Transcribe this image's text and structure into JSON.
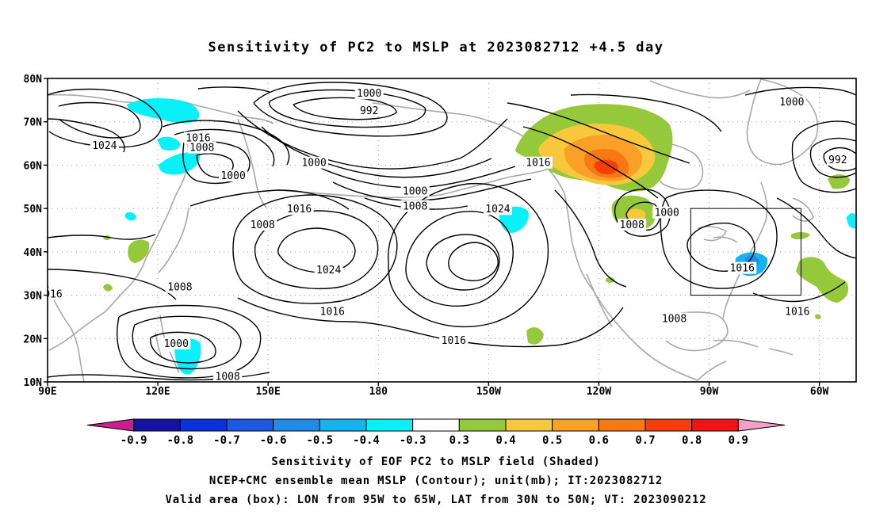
{
  "title": "Sensitivity of PC2 to MSLP at 2023082712 +4.5 day",
  "map": {
    "lat_labels": [
      "80N",
      "70N",
      "60N",
      "50N",
      "40N",
      "30N",
      "20N",
      "10N"
    ],
    "lon_labels": [
      "90E",
      "120E",
      "150E",
      "180",
      "150W",
      "120W",
      "90W",
      "60W"
    ],
    "valid_box": {
      "lon_from": "95W",
      "lon_to": "65W",
      "lat_from": "30N",
      "lat_to": "50N"
    },
    "contour_labels": [
      {
        "text": "1000",
        "lon": 177.5,
        "lat": 76.5
      },
      {
        "text": "992",
        "lon": 177.5,
        "lat": 72.5
      },
      {
        "text": "1024",
        "lon": 105.5,
        "lat": 64.5
      },
      {
        "text": "1016",
        "lon": 131,
        "lat": 66.2
      },
      {
        "text": "1008",
        "lon": 132,
        "lat": 64
      },
      {
        "text": "1000",
        "lon": 140.5,
        "lat": 57.5
      },
      {
        "text": "1000",
        "lon": 162.5,
        "lat": 60.5
      },
      {
        "text": "1000",
        "lon": 190,
        "lat": 54
      },
      {
        "text": "1008",
        "lon": 190,
        "lat": 50.5
      },
      {
        "text": "1016",
        "lon": 223.5,
        "lat": 60.5
      },
      {
        "text": "1016",
        "lon": 158.5,
        "lat": 49.8
      },
      {
        "text": "1024",
        "lon": 212.5,
        "lat": 49.8
      },
      {
        "text": "1008",
        "lon": 148.5,
        "lat": 46.2
      },
      {
        "text": "1008",
        "lon": 249,
        "lat": 46.2
      },
      {
        "text": "1000",
        "lon": 258.5,
        "lat": 49
      },
      {
        "text": "1024",
        "lon": 166.5,
        "lat": 35.8
      },
      {
        "text": "1008",
        "lon": 126,
        "lat": 31.8
      },
      {
        "text": "1016",
        "lon": 167.5,
        "lat": 26.2
      },
      {
        "text": "1016",
        "lon": 200.5,
        "lat": 19.5
      },
      {
        "text": "1008",
        "lon": 260.5,
        "lat": 24.5
      },
      {
        "text": "1016",
        "lon": 279,
        "lat": 36.2
      },
      {
        "text": "1016",
        "lon": 294,
        "lat": 26.2
      },
      {
        "text": "1000",
        "lon": 292.5,
        "lat": 74.5
      },
      {
        "text": "992",
        "lon": 305,
        "lat": 61.2
      },
      {
        "text": "1000",
        "lon": 125,
        "lat": 18.8
      },
      {
        "text": "1008",
        "lon": 139,
        "lat": 11.2
      },
      {
        "text": "016",
        "lon": 91.5,
        "lat": 30.2
      }
    ]
  },
  "colorbar": {
    "bins": [
      {
        "color": "#c8208c"
      },
      {
        "color": "#1414a0"
      },
      {
        "color": "#0a32dc"
      },
      {
        "color": "#1c5ae6"
      },
      {
        "color": "#1e8ce8"
      },
      {
        "color": "#14b4f0"
      },
      {
        "color": "#0af0f8"
      },
      {
        "color": "#ffffff"
      },
      {
        "color": "#96c83c"
      },
      {
        "color": "#f8c83c"
      },
      {
        "color": "#f8a028"
      },
      {
        "color": "#f87814"
      },
      {
        "color": "#f83c0a"
      },
      {
        "color": "#f01414"
      },
      {
        "color": "#f4a0c8"
      }
    ],
    "labels": [
      "-0.9",
      "-0.8",
      "-0.7",
      "-0.6",
      "-0.5",
      "-0.4",
      "-0.3",
      "0.3",
      "0.4",
      "0.5",
      "0.6",
      "0.7",
      "0.8",
      "0.9"
    ]
  },
  "captions": {
    "line1": "Sensitivity of EOF PC2 to MSLP field (Shaded)",
    "line2": "NCEP+CMC ensemble mean MSLP (Contour); unit(mb); IT:2023082712",
    "line3": "Valid area (box): LON from 95W to 65W, LAT from 30N to 50N; VT: 2023090212"
  }
}
